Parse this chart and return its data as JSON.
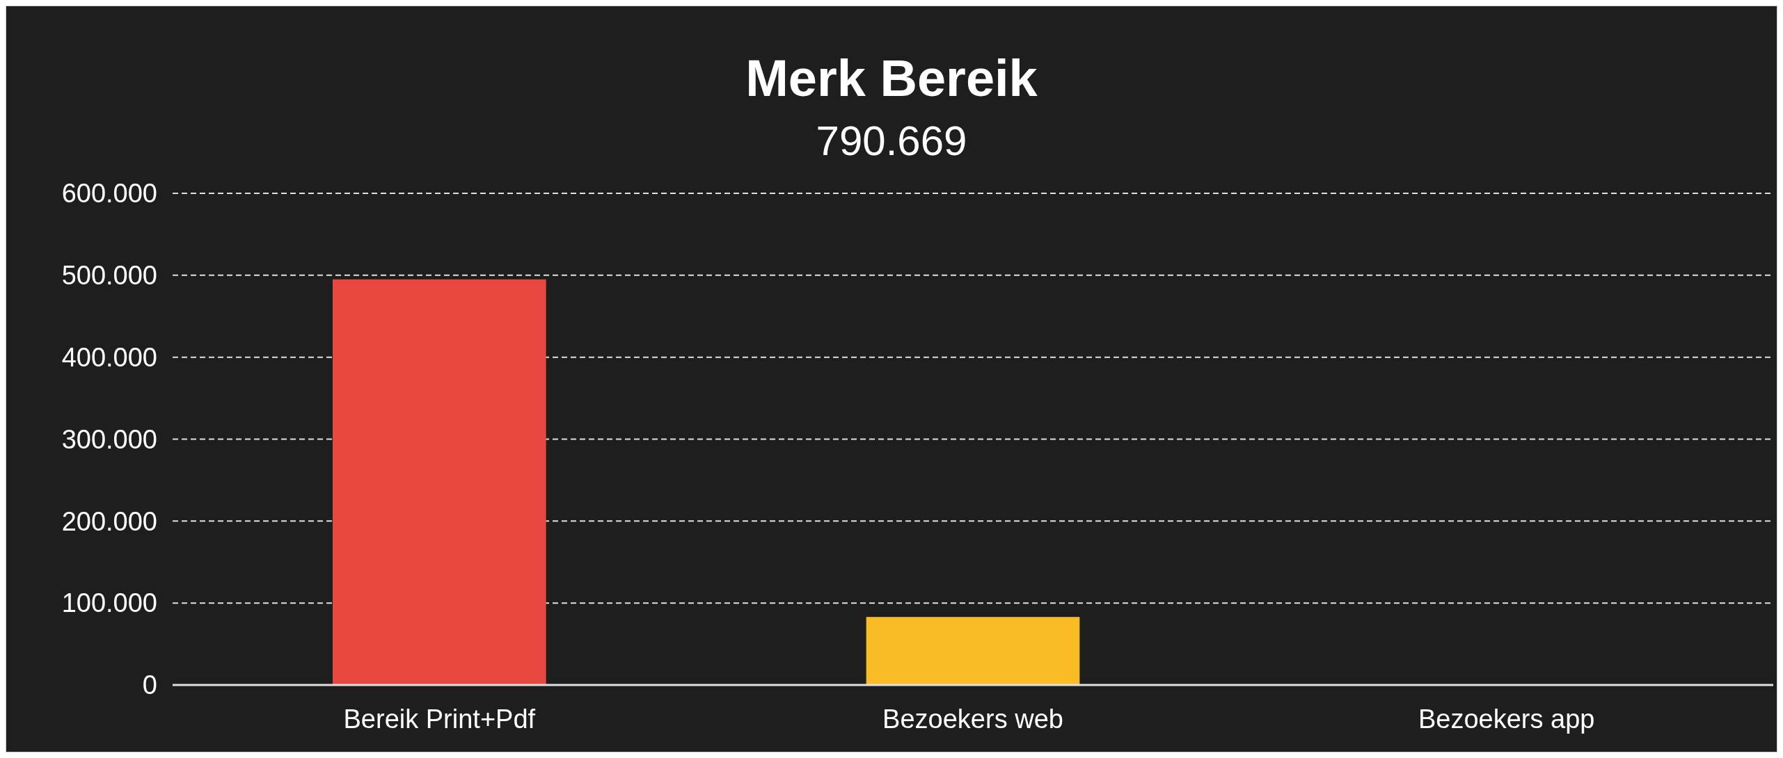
{
  "chart_data": {
    "type": "bar",
    "title": "Merk Bereik",
    "subtitle": "790.669",
    "categories": [
      "Bereik Print+Pdf",
      "Bezoekers web",
      "Bezoekers app"
    ],
    "values": [
      495000,
      83000,
      0
    ],
    "colors": [
      "#e8483f",
      "#f9bc24",
      "#2f9be0"
    ],
    "ylim": [
      0,
      600000
    ],
    "yticks": [
      {
        "value": 0,
        "label": "0"
      },
      {
        "value": 100000,
        "label": "100.000"
      },
      {
        "value": 200000,
        "label": "200.000"
      },
      {
        "value": 300000,
        "label": "300.000"
      },
      {
        "value": 400000,
        "label": "400.000"
      },
      {
        "value": 500000,
        "label": "500.000"
      },
      {
        "value": 600000,
        "label": "600.000"
      }
    ],
    "grid": "y"
  }
}
